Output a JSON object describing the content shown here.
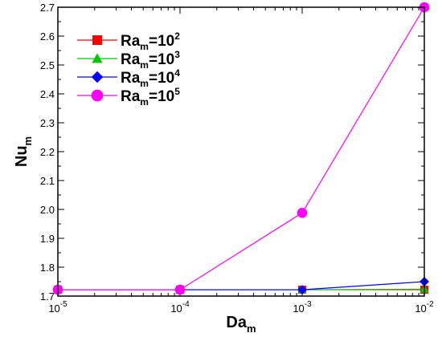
{
  "chart_data": {
    "type": "line",
    "xlabel": "Da",
    "xlabel_sub": "m",
    "ylabel": "Nu",
    "ylabel_sub": "m",
    "x_scale": "log",
    "x": [
      1e-05,
      0.0001,
      0.001,
      0.01
    ],
    "x_ticks": [
      {
        "base": "10",
        "exp": "-5"
      },
      {
        "base": "10",
        "exp": "-4"
      },
      {
        "base": "10",
        "exp": "-3"
      },
      {
        "base": "10",
        "exp": "-2"
      }
    ],
    "ylim": [
      1.7,
      2.7
    ],
    "y_ticks": [
      "1.7",
      "1.8",
      "1.9",
      "2.0",
      "2.1",
      "2.2",
      "2.3",
      "2.4",
      "2.5",
      "2.6",
      "2.7"
    ],
    "grid": false,
    "legend_position": "top-left",
    "series": [
      {
        "label": "Ra",
        "label_sub": "m",
        "label_rest": "=10",
        "label_sup": "2",
        "color": "#ff0000",
        "marker": "square",
        "values": [
          1.722,
          1.722,
          1.722,
          1.722
        ]
      },
      {
        "label": "Ra",
        "label_sub": "m",
        "label_rest": "=10",
        "label_sup": "3",
        "color": "#00c800",
        "marker": "triangle",
        "values": [
          1.722,
          1.722,
          1.722,
          1.724
        ]
      },
      {
        "label": "Ra",
        "label_sub": "m",
        "label_rest": "=10",
        "label_sup": "4",
        "color": "#0000ff",
        "marker": "diamond",
        "values": [
          1.722,
          1.722,
          1.722,
          1.75
        ]
      },
      {
        "label": "Ra",
        "label_sub": "m",
        "label_rest": "=10",
        "label_sup": "5",
        "color": "#ff00ff",
        "marker": "circle",
        "values": [
          1.722,
          1.722,
          1.988,
          2.7
        ]
      }
    ]
  }
}
